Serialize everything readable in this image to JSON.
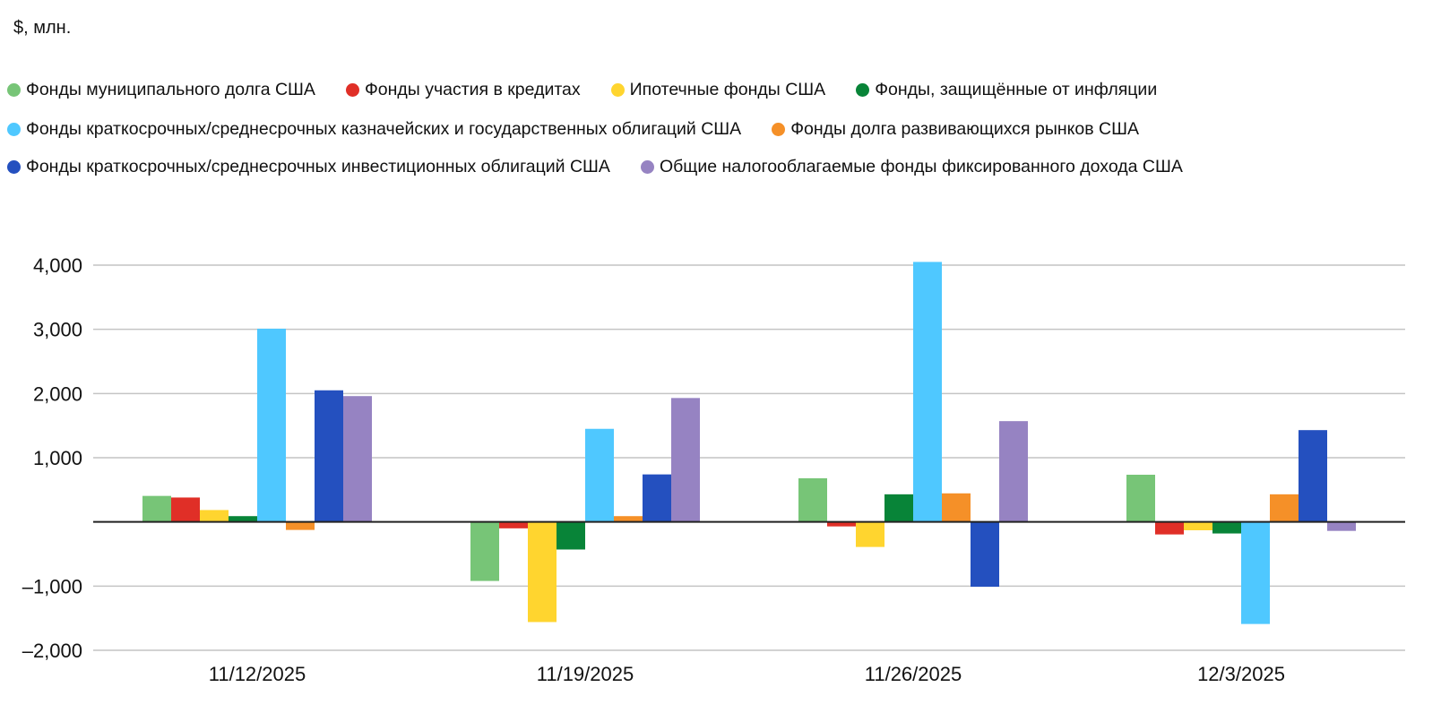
{
  "chart_data": {
    "type": "bar",
    "title": "",
    "ylabel": "$, млн.",
    "xlabel": "",
    "categories": [
      "11/12/2025",
      "11/19/2025",
      "11/26/2025",
      "12/3/2025"
    ],
    "ylim": [
      -2000,
      4000
    ],
    "yticks": [
      -2000,
      -1000,
      0,
      1000,
      2000,
      3000,
      4000
    ],
    "ytick_labels": [
      "–2,000",
      "–1,000",
      "",
      "1,000",
      "2,000",
      "3,000",
      "4,000"
    ],
    "grid": true,
    "legend_position": "top",
    "series": [
      {
        "name": "Фонды муниципального долга США",
        "color": "#77c577",
        "values": [
          405,
          -920,
          680,
          735
        ]
      },
      {
        "name": "Фонды участия в кредитах",
        "color": "#e02f27",
        "values": [
          380,
          -100,
          -70,
          -195
        ]
      },
      {
        "name": "Ипотечные фонды США",
        "color": "#ffd52f",
        "values": [
          185,
          -1560,
          -390,
          -130
        ]
      },
      {
        "name": "Фонды, защищённые от инфляции",
        "color": "#088438",
        "values": [
          90,
          -430,
          430,
          -180
        ]
      },
      {
        "name": "Фонды краткосрочных/среднесрочных казначейских и государственных облигаций США",
        "color": "#4fc8ff",
        "values": [
          3010,
          1450,
          4050,
          -1590
        ]
      },
      {
        "name": "Фонды долга развивающихся рынков США",
        "color": "#f59028",
        "values": [
          -125,
          90,
          445,
          430
        ]
      },
      {
        "name": "Фонды краткосрочных/среднесрочных инвестиционных облигаций США",
        "color": "#2450bf",
        "values": [
          2050,
          740,
          -1010,
          1430
        ]
      },
      {
        "name": "Общие налогооблагаемые фонды фиксированного дохода США",
        "color": "#9683c2",
        "values": [
          1960,
          1930,
          1570,
          -140
        ]
      }
    ]
  }
}
